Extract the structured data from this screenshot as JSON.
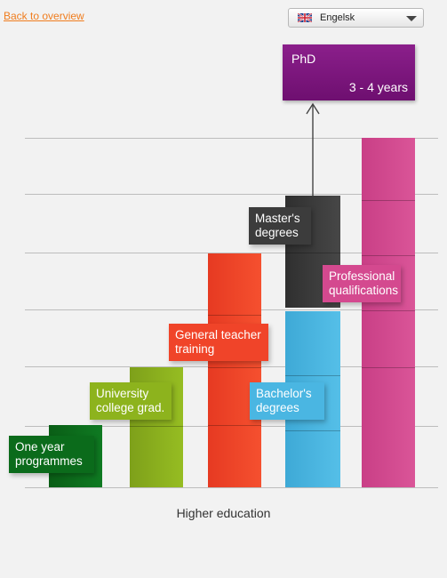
{
  "nav": {
    "back_label": "Back to overview"
  },
  "language": {
    "selected": "Engelsk",
    "flag_icon": "uk-flag-icon"
  },
  "caption": "Higher education",
  "phd": {
    "title": "PhD",
    "duration": "3 - 4 years",
    "color": "#7a1478"
  },
  "programmes": [
    {
      "label": "One year programmes",
      "color": "#0b6b1b"
    },
    {
      "label": "University college grad.",
      "color": "#8db31d"
    },
    {
      "label": "General teacher training",
      "color": "#f04429"
    },
    {
      "label": "Bachelor's degrees",
      "color": "#4ab6e2"
    },
    {
      "label": "Master's degrees",
      "color": "#3c3c3c"
    },
    {
      "label": "Professional qualifications",
      "color": "#d4498f"
    }
  ]
}
